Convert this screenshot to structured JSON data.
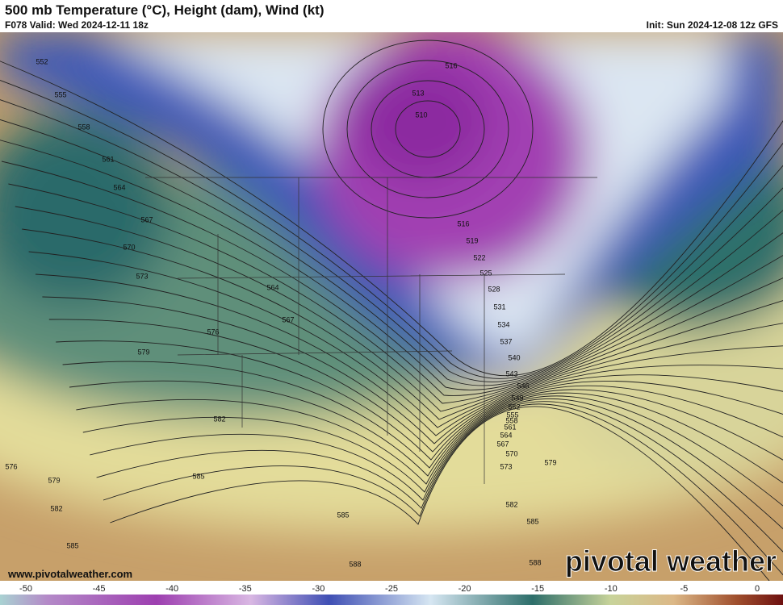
{
  "header": {
    "title": "500 mb Temperature (°C), Height (dam), Wind (kt)",
    "valid": "F078 Valid: Wed 2024-12-11 18z",
    "init": "Init: Sun 2024-12-08 12z GFS"
  },
  "map": {
    "contour_labels": [
      552,
      555,
      558,
      561,
      564,
      567,
      570,
      573,
      576,
      579,
      582,
      585,
      585,
      588,
      585,
      582,
      579,
      576,
      564,
      567,
      516,
      513,
      510,
      516,
      519,
      522,
      525,
      528,
      531,
      534,
      537,
      540,
      543,
      546,
      549,
      552,
      555,
      558,
      561,
      564,
      567,
      570,
      573,
      579,
      582,
      585,
      588
    ]
  },
  "colorbar": {
    "ticks": [
      -50,
      -45,
      -40,
      -35,
      -30,
      -25,
      -20,
      -15,
      -10,
      -5,
      0
    ]
  },
  "footer": {
    "url": "www.pivotalweather.com",
    "brand": "pivotal weather"
  }
}
